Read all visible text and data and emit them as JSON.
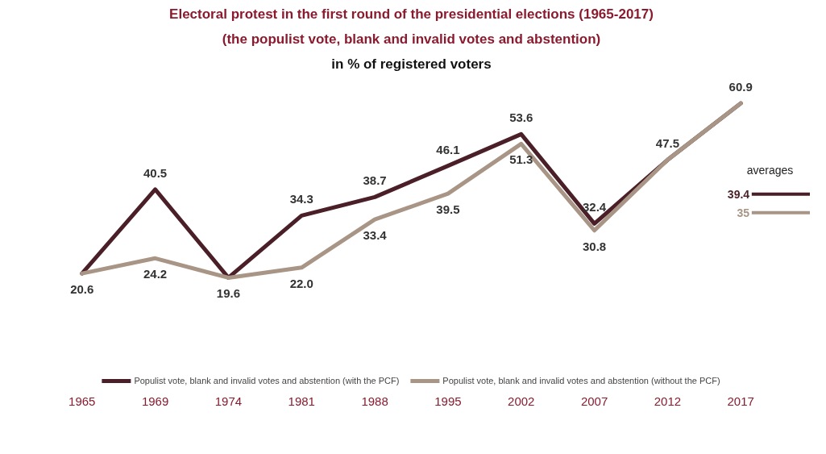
{
  "chart_data": {
    "type": "line",
    "title": "Electoral protest in the first round of the presidential elections (1965-2017)",
    "subtitle": "(the populist vote, blank and invalid votes and abstention)",
    "ylabel": "in % of registered voters",
    "categories": [
      "1965",
      "1969",
      "1974",
      "1981",
      "1988",
      "1995",
      "2002",
      "2007",
      "2012",
      "2017"
    ],
    "series": [
      {
        "name": "Populist vote, blank and invalid votes and abstention (with the PCF)",
        "color": "#4a1f27",
        "values": [
          20.6,
          40.5,
          19.6,
          34.3,
          38.7,
          46.1,
          53.6,
          32.4,
          47.5,
          60.9
        ],
        "value_labels": [
          null,
          "40.5",
          null,
          "34.3",
          "38.7",
          "46.1",
          "53.6",
          "32.4",
          "47.5",
          "60.9"
        ]
      },
      {
        "name": "Populist vote, blank and invalid votes and abstention (without the PCF)",
        "color": "#a89586",
        "values": [
          20.6,
          24.2,
          19.6,
          22.0,
          33.4,
          39.5,
          51.3,
          30.8,
          47.5,
          60.9
        ],
        "value_labels": [
          "20.6",
          "24.2",
          "19.6",
          "22.0",
          "33.4",
          "39.5",
          "51.3",
          "30.8",
          null,
          null
        ]
      }
    ],
    "ref_lines": [
      {
        "axis": "y",
        "value": 39.4,
        "label": "39.4",
        "color": "#4a1f27"
      },
      {
        "axis": "y",
        "value": 35,
        "label": "35",
        "color": "#a89586"
      }
    ],
    "annotations": [
      "averages"
    ],
    "tick_labels": "x",
    "grid": false,
    "legend": "bottom",
    "marker": "none",
    "line_style": "solid"
  }
}
